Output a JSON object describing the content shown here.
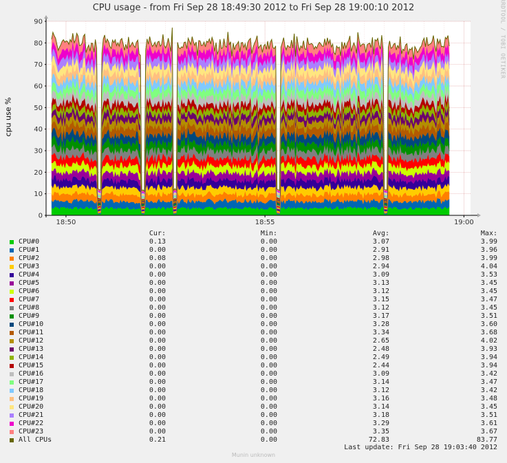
{
  "graph": {
    "title": "CPU usage - from Fri Sep 28 18:49:30 2012 to Fri Sep 28 19:00:10 2012",
    "watermark": "RRDTOOL / TOBI OETIKER",
    "last_update": "Last update:  Fri Sep 28 19:03:40 2012",
    "footer": "Munin unknown"
  },
  "chart_data": {
    "type": "area",
    "stacked": true,
    "ylabel": "cpu use %",
    "ylim": [
      0,
      90
    ],
    "yticks": [
      0,
      10,
      20,
      30,
      40,
      50,
      60,
      70,
      80,
      90
    ],
    "xticks": [
      "18:50",
      "18:55",
      "19:00"
    ],
    "x_range": [
      "18:49:30",
      "19:00:10"
    ],
    "grid": true,
    "legend_placement": "bottom",
    "columns": [
      "Cur:",
      "Min:",
      "Avg:",
      "Max:"
    ],
    "series": [
      {
        "name": "CPU#0",
        "color": "#00cc00",
        "cur": "0.13",
        "min": "0.00",
        "avg": "3.07",
        "max": "3.99"
      },
      {
        "name": "CPU#1",
        "color": "#0066b3",
        "cur": "0.00",
        "min": "0.00",
        "avg": "2.91",
        "max": "3.96"
      },
      {
        "name": "CPU#2",
        "color": "#ff8000",
        "cur": "0.08",
        "min": "0.00",
        "avg": "2.98",
        "max": "3.99"
      },
      {
        "name": "CPU#3",
        "color": "#ffcc00",
        "cur": "0.00",
        "min": "0.00",
        "avg": "2.94",
        "max": "4.04"
      },
      {
        "name": "CPU#4",
        "color": "#330099",
        "cur": "0.00",
        "min": "0.00",
        "avg": "3.09",
        "max": "3.53"
      },
      {
        "name": "CPU#5",
        "color": "#990099",
        "cur": "0.00",
        "min": "0.00",
        "avg": "3.13",
        "max": "3.45"
      },
      {
        "name": "CPU#6",
        "color": "#ccff00",
        "cur": "0.00",
        "min": "0.00",
        "avg": "3.12",
        "max": "3.45"
      },
      {
        "name": "CPU#7",
        "color": "#ff0000",
        "cur": "0.00",
        "min": "0.00",
        "avg": "3.15",
        "max": "3.47"
      },
      {
        "name": "CPU#8",
        "color": "#808080",
        "cur": "0.00",
        "min": "0.00",
        "avg": "3.12",
        "max": "3.45"
      },
      {
        "name": "CPU#9",
        "color": "#008f00",
        "cur": "0.00",
        "min": "0.00",
        "avg": "3.17",
        "max": "3.51"
      },
      {
        "name": "CPU#10",
        "color": "#00487d",
        "cur": "0.00",
        "min": "0.00",
        "avg": "3.28",
        "max": "3.60"
      },
      {
        "name": "CPU#11",
        "color": "#b35a00",
        "cur": "0.00",
        "min": "0.00",
        "avg": "3.34",
        "max": "3.68"
      },
      {
        "name": "CPU#12",
        "color": "#b38f00",
        "cur": "0.00",
        "min": "0.00",
        "avg": "2.65",
        "max": "4.02"
      },
      {
        "name": "CPU#13",
        "color": "#6b006b",
        "cur": "0.00",
        "min": "0.00",
        "avg": "2.48",
        "max": "3.93"
      },
      {
        "name": "CPU#14",
        "color": "#8fb300",
        "cur": "0.00",
        "min": "0.00",
        "avg": "2.49",
        "max": "3.94"
      },
      {
        "name": "CPU#15",
        "color": "#b30000",
        "cur": "0.00",
        "min": "0.00",
        "avg": "2.44",
        "max": "3.94"
      },
      {
        "name": "CPU#16",
        "color": "#bebebe",
        "cur": "0.00",
        "min": "0.00",
        "avg": "3.09",
        "max": "3.42"
      },
      {
        "name": "CPU#17",
        "color": "#80ff80",
        "cur": "0.00",
        "min": "0.00",
        "avg": "3.14",
        "max": "3.47"
      },
      {
        "name": "CPU#18",
        "color": "#80c9ff",
        "cur": "0.00",
        "min": "0.00",
        "avg": "3.12",
        "max": "3.42"
      },
      {
        "name": "CPU#19",
        "color": "#ffc080",
        "cur": "0.00",
        "min": "0.00",
        "avg": "3.16",
        "max": "3.48"
      },
      {
        "name": "CPU#20",
        "color": "#ffe680",
        "cur": "0.00",
        "min": "0.00",
        "avg": "3.14",
        "max": "3.45"
      },
      {
        "name": "CPU#21",
        "color": "#aa80ff",
        "cur": "0.00",
        "min": "0.00",
        "avg": "3.18",
        "max": "3.51"
      },
      {
        "name": "CPU#22",
        "color": "#ee00cc",
        "cur": "0.00",
        "min": "0.00",
        "avg": "3.29",
        "max": "3.61"
      },
      {
        "name": "CPU#23",
        "color": "#ff8080",
        "cur": "0.00",
        "min": "0.00",
        "avg": "3.35",
        "max": "3.67"
      }
    ],
    "total": {
      "name": "All CPUs",
      "color": "#666600",
      "cur": "0.21",
      "min": "0.00",
      "avg": "72.83",
      "max": "83.77"
    }
  }
}
